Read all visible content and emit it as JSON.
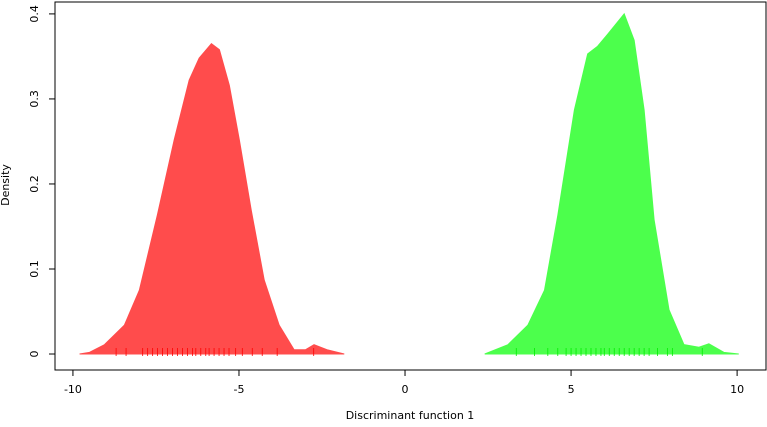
{
  "chart_data": {
    "type": "area",
    "xlabel": "Discriminant function 1",
    "ylabel": "Density",
    "xlim": [
      -10.54,
      10.87
    ],
    "xticks": [
      -10,
      -5,
      0,
      5,
      10
    ],
    "ylim": [
      -0.0188,
      0.414
    ],
    "yticks": [
      0.0,
      0.1,
      0.2,
      0.3,
      0.4
    ],
    "series": [
      {
        "color": "#ff4c4c",
        "x": [
          -9.8,
          -9.5,
          -9.05,
          -8.45,
          -8.0,
          -7.46,
          -6.95,
          -6.5,
          -6.2,
          -5.83,
          -5.59,
          -5.29,
          -4.99,
          -4.63,
          -4.24,
          -3.79,
          -3.34,
          -3.0,
          -2.74,
          -2.35,
          -1.83
        ],
        "values": [
          0,
          0.002,
          0.011,
          0.034,
          0.075,
          0.163,
          0.252,
          0.322,
          0.348,
          0.365,
          0.358,
          0.316,
          0.252,
          0.169,
          0.087,
          0.034,
          0.005,
          0.005,
          0.011,
          0.005,
          0
        ],
        "rug": [
          -8.7,
          -8.4,
          -7.9,
          -7.75,
          -7.6,
          -7.45,
          -7.3,
          -7.15,
          -7.0,
          -6.85,
          -6.7,
          -6.55,
          -6.4,
          -6.3,
          -6.15,
          -6.0,
          -5.9,
          -5.75,
          -5.6,
          -5.45,
          -5.3,
          -5.1,
          -4.9,
          -4.6,
          -4.3,
          -3.85,
          -2.75
        ]
      },
      {
        "color": "#4cff4c",
        "x": [
          2.4,
          3.1,
          3.7,
          4.2,
          4.6,
          5.1,
          5.5,
          5.8,
          6.1,
          6.6,
          6.9,
          7.2,
          7.5,
          7.95,
          8.4,
          8.85,
          9.15,
          9.6,
          10.05
        ],
        "values": [
          0,
          0.011,
          0.034,
          0.075,
          0.163,
          0.287,
          0.353,
          0.362,
          0.376,
          0.4,
          0.369,
          0.287,
          0.158,
          0.052,
          0.011,
          0.008,
          0.012,
          0.002,
          0
        ],
        "rug": [
          3.35,
          3.9,
          4.3,
          4.6,
          4.85,
          5.0,
          5.15,
          5.3,
          5.45,
          5.6,
          5.75,
          5.9,
          6.0,
          6.15,
          6.3,
          6.45,
          6.6,
          6.75,
          6.9,
          7.05,
          7.2,
          7.35,
          7.6,
          7.9,
          8.05,
          8.95
        ]
      }
    ]
  }
}
